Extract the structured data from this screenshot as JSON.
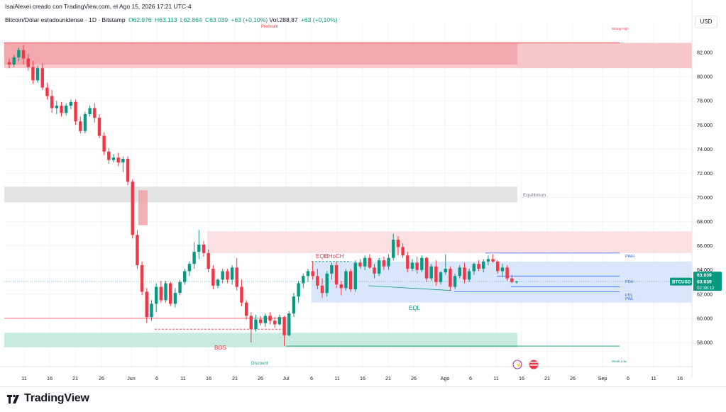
{
  "header": {
    "title": "IsaiAlexei creado con TradingView.com, el Ago 15, 2026 17:21 UTC-4"
  },
  "legend": {
    "symbol": "Bitcoin/Dólar estadounidense · 1D · Bitstamp",
    "open": "O62.976",
    "high": "H63.113",
    "low": "L62.864",
    "close": "C63.039",
    "change": "+63 (+0,10%)",
    "volume": "Vol.288,87",
    "vol_change": "+63 (+0,10%)"
  },
  "currency": "USD",
  "footer": {
    "brand": "TradingView"
  },
  "colors": {
    "up": "#089981",
    "down": "#f23645",
    "premium_zone": "#f7a9ae",
    "discount_zone": "#c8ebe0",
    "equilibrium_zone": "#e3e4e6",
    "range_box": "#d6e4fb",
    "line_blue": "#2962ff",
    "price_tag": "#089981"
  },
  "chart_data": {
    "type": "candlestick",
    "ylim": [
      56000,
      84000
    ],
    "y_ticks": [
      "82.000",
      "80.000",
      "78.000",
      "76.000",
      "74.000",
      "72.000",
      "70.000",
      "68.000",
      "66.000",
      "64.000",
      "62.000",
      "60.000",
      "58.000"
    ],
    "y_tick_values": [
      82000,
      80000,
      78000,
      76000,
      74000,
      72000,
      70000,
      68000,
      66000,
      64000,
      62000,
      60000,
      58000
    ],
    "x_ticks": [
      "11",
      "16",
      "21",
      "26",
      "Jun",
      "6",
      "11",
      "16",
      "21",
      "26",
      "Jul",
      "6",
      "11",
      "16",
      "21",
      "26",
      "Ago",
      "6",
      "11",
      "16",
      "21",
      "26",
      "Sep",
      "6",
      "11",
      "16"
    ],
    "last_price": "63.039",
    "countdown": "02:38:12",
    "symbol_tag": "BTCUSD",
    "candles": [
      [
        81200,
        81500,
        80700,
        81000
      ],
      [
        81000,
        81800,
        80800,
        81600
      ],
      [
        81600,
        82400,
        81300,
        82200
      ],
      [
        82200,
        82600,
        81000,
        81500
      ],
      [
        81500,
        81900,
        80500,
        80800
      ],
      [
        80800,
        81300,
        79400,
        79700
      ],
      [
        79700,
        80900,
        79500,
        80700
      ],
      [
        80700,
        81100,
        78900,
        79100
      ],
      [
        79100,
        79500,
        78100,
        78400
      ],
      [
        78400,
        78900,
        77000,
        77400
      ],
      [
        77400,
        78000,
        76900,
        77600
      ],
      [
        77600,
        77900,
        76700,
        77000
      ],
      [
        77000,
        77800,
        76800,
        77600
      ],
      [
        77600,
        78100,
        77300,
        77900
      ],
      [
        77900,
        78100,
        76000,
        76300
      ],
      [
        76300,
        76700,
        75300,
        75500
      ],
      [
        75500,
        77100,
        75300,
        76900
      ],
      [
        76900,
        77600,
        76700,
        77400
      ],
      [
        77400,
        77800,
        76200,
        76600
      ],
      [
        76600,
        76900,
        74900,
        75100
      ],
      [
        75100,
        75400,
        73500,
        73800
      ],
      [
        73800,
        74100,
        72800,
        73100
      ],
      [
        73100,
        73600,
        72900,
        73300
      ],
      [
        73300,
        73700,
        72600,
        72900
      ],
      [
        72900,
        73400,
        72100,
        73200
      ],
      [
        73200,
        73400,
        71000,
        71300
      ],
      [
        71300,
        71500,
        66600,
        66900
      ],
      [
        66900,
        67300,
        64100,
        64400
      ],
      [
        64400,
        64700,
        61900,
        62200
      ],
      [
        62200,
        62500,
        59600,
        60100
      ],
      [
        60100,
        61500,
        59800,
        61200
      ],
      [
        61200,
        62900,
        60500,
        62600
      ],
      [
        62600,
        63100,
        61300,
        61500
      ],
      [
        61500,
        63100,
        61300,
        62900
      ],
      [
        62900,
        63000,
        61000,
        61200
      ],
      [
        61200,
        62500,
        60900,
        62100
      ],
      [
        62100,
        63200,
        61900,
        63000
      ],
      [
        63000,
        64100,
        62800,
        63900
      ],
      [
        63900,
        64700,
        63500,
        64500
      ],
      [
        64500,
        66300,
        64100,
        65500
      ],
      [
        65500,
        67300,
        64900,
        66100
      ],
      [
        66100,
        66400,
        65100,
        65400
      ],
      [
        65400,
        65700,
        63800,
        64100
      ],
      [
        64100,
        64400,
        62400,
        62700
      ],
      [
        62700,
        63300,
        62500,
        63200
      ],
      [
        63200,
        64100,
        62900,
        63900
      ],
      [
        63900,
        64100,
        62900,
        63200
      ],
      [
        63200,
        64400,
        62800,
        64200
      ],
      [
        64200,
        65000,
        62300,
        62600
      ],
      [
        62600,
        63200,
        61000,
        61300
      ],
      [
        61300,
        61500,
        59900,
        60200
      ],
      [
        60200,
        60500,
        58000,
        59100
      ],
      [
        59100,
        60300,
        58900,
        59900
      ],
      [
        59900,
        60200,
        59400,
        59600
      ],
      [
        59600,
        60400,
        59300,
        60200
      ],
      [
        60200,
        60500,
        59500,
        59800
      ],
      [
        59800,
        60100,
        59200,
        59500
      ],
      [
        59500,
        60300,
        59400,
        60100
      ],
      [
        60100,
        60200,
        57700,
        58600
      ],
      [
        58600,
        60600,
        58500,
        60400
      ],
      [
        60400,
        62100,
        60100,
        61800
      ],
      [
        61800,
        63100,
        61300,
        62900
      ],
      [
        62900,
        63700,
        62500,
        63500
      ],
      [
        63500,
        64100,
        63000,
        63900
      ],
      [
        63900,
        64700,
        63200,
        63500
      ],
      [
        63500,
        64100,
        62400,
        62700
      ],
      [
        62700,
        63300,
        61700,
        62100
      ],
      [
        62100,
        63900,
        61800,
        63700
      ],
      [
        63700,
        64600,
        63200,
        64400
      ],
      [
        64400,
        64700,
        62500,
        62800
      ],
      [
        62800,
        63100,
        61900,
        62500
      ],
      [
        62500,
        64100,
        62300,
        63900
      ],
      [
        63900,
        64100,
        62200,
        62400
      ],
      [
        62400,
        64800,
        62200,
        64600
      ],
      [
        64600,
        64900,
        64100,
        64300
      ],
      [
        64300,
        65200,
        64000,
        65000
      ],
      [
        65000,
        65300,
        64100,
        64200
      ],
      [
        64200,
        64500,
        63300,
        63700
      ],
      [
        63700,
        65000,
        63500,
        64800
      ],
      [
        64800,
        65100,
        64000,
        64300
      ],
      [
        64300,
        65300,
        64000,
        65000
      ],
      [
        65000,
        67000,
        64800,
        66500
      ],
      [
        66500,
        66800,
        65200,
        65900
      ],
      [
        65900,
        66200,
        65000,
        65200
      ],
      [
        65200,
        65500,
        63800,
        64100
      ],
      [
        64100,
        64900,
        63900,
        64600
      ],
      [
        64600,
        65100,
        63700,
        64000
      ],
      [
        64000,
        65200,
        63800,
        65000
      ],
      [
        65000,
        65100,
        63000,
        63300
      ],
      [
        63300,
        64500,
        63100,
        64300
      ],
      [
        64300,
        64800,
        62700,
        63000
      ],
      [
        63000,
        63900,
        62800,
        63800
      ],
      [
        63800,
        65300,
        63600,
        64100
      ],
      [
        64100,
        64300,
        62300,
        62600
      ],
      [
        62600,
        63700,
        62400,
        63500
      ],
      [
        63500,
        64400,
        63300,
        64200
      ],
      [
        64200,
        64600,
        62900,
        63200
      ],
      [
        63200,
        64100,
        63000,
        63900
      ],
      [
        63900,
        64600,
        63600,
        64500
      ],
      [
        64500,
        64800,
        63900,
        64100
      ],
      [
        64100,
        64900,
        63800,
        64700
      ],
      [
        64700,
        65200,
        64400,
        64900
      ],
      [
        64900,
        65300,
        64600,
        64700
      ],
      [
        64700,
        64800,
        63700,
        63900
      ],
      [
        63900,
        64500,
        63400,
        64200
      ],
      [
        64200,
        64400,
        63100,
        63300
      ],
      [
        63300,
        63600,
        62900,
        63000
      ],
      [
        62976,
        63113,
        62864,
        63039
      ]
    ],
    "zones": [
      {
        "label": "Premium",
        "sub": "Strong High"
      },
      {
        "label": "Equilibrium"
      },
      {
        "label": "Discount",
        "sub": "Weak Low"
      }
    ],
    "annotations": [
      "EQH",
      "CHoCH",
      "EQL",
      "BOS",
      "PWH",
      "PDH",
      "PDL",
      "PWL"
    ]
  }
}
